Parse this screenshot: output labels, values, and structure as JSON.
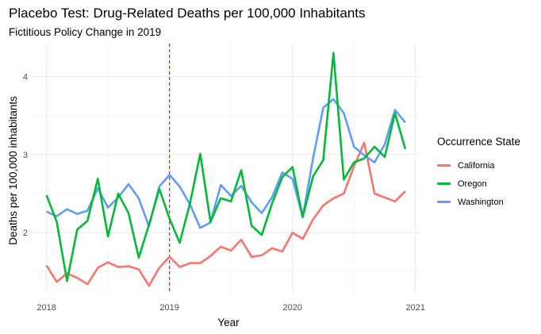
{
  "chart_data": {
    "type": "line",
    "title": "Placebo Test: Drug-Related Deaths per 100,000 Inhabitants",
    "subtitle": "Fictitious Policy Change in 2019",
    "xlabel": "Year",
    "ylabel": "Deaths per 100,000 inhabitants",
    "xlim": [
      2017.88,
      2021.04
    ],
    "ylim": [
      1.22,
      4.42
    ],
    "x_ticks": [
      2018,
      2019,
      2020,
      2021
    ],
    "x_tick_labels": [
      "2018",
      "2019",
      "2020",
      "2021"
    ],
    "y_ticks": [
      2,
      3,
      4
    ],
    "y_tick_labels": [
      "2",
      "3",
      "4"
    ],
    "grid": true,
    "legend_title": "Occurrence State",
    "legend_position": "right",
    "reference_line": {
      "x": 2019,
      "color": "#e41a1c",
      "style": "dashed"
    },
    "x": [
      2018.0,
      2018.083,
      2018.167,
      2018.25,
      2018.333,
      2018.417,
      2018.5,
      2018.583,
      2018.667,
      2018.75,
      2018.833,
      2018.917,
      2019.0,
      2019.083,
      2019.167,
      2019.25,
      2019.333,
      2019.417,
      2019.5,
      2019.583,
      2019.667,
      2019.75,
      2019.833,
      2019.917,
      2020.0,
      2020.083,
      2020.167,
      2020.25,
      2020.333,
      2020.417,
      2020.5,
      2020.583,
      2020.667,
      2020.75,
      2020.833,
      2020.917
    ],
    "series": [
      {
        "name": "California",
        "color": "#f8766d",
        "values": [
          1.58,
          1.37,
          1.48,
          1.42,
          1.34,
          1.55,
          1.62,
          1.56,
          1.57,
          1.53,
          1.32,
          1.55,
          1.69,
          1.56,
          1.61,
          1.61,
          1.7,
          1.82,
          1.77,
          1.91,
          1.69,
          1.71,
          1.8,
          1.76,
          2.0,
          1.92,
          2.17,
          2.35,
          2.44,
          2.5,
          2.85,
          3.15,
          2.5,
          2.45,
          2.4,
          2.53
        ]
      },
      {
        "name": "Oregon",
        "color": "#00ba38",
        "values": [
          2.48,
          2.14,
          1.38,
          2.04,
          2.15,
          2.69,
          1.95,
          2.5,
          2.25,
          1.68,
          2.1,
          2.56,
          2.18,
          1.87,
          2.38,
          3.01,
          2.14,
          2.44,
          2.4,
          2.8,
          2.09,
          1.97,
          2.37,
          2.71,
          2.84,
          2.2,
          2.72,
          2.93,
          4.3,
          2.68,
          2.9,
          2.95,
          3.1,
          2.97,
          3.53,
          3.07
        ]
      },
      {
        "name": "Washington",
        "color": "#619cff",
        "values": [
          2.27,
          2.21,
          2.3,
          2.24,
          2.28,
          2.57,
          2.32,
          2.45,
          2.62,
          2.44,
          2.08,
          2.59,
          2.74,
          2.59,
          2.36,
          2.06,
          2.13,
          2.61,
          2.47,
          2.6,
          2.39,
          2.25,
          2.45,
          2.77,
          2.69,
          2.2,
          2.95,
          3.6,
          3.71,
          3.53,
          3.1,
          2.99,
          2.9,
          3.13,
          3.57,
          3.41
        ]
      }
    ]
  }
}
